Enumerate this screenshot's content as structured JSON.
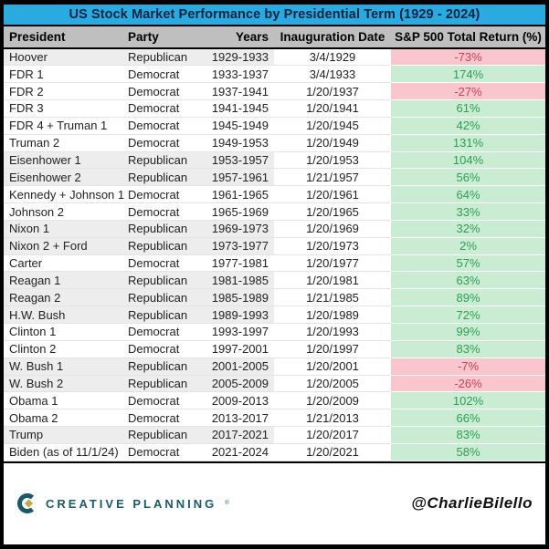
{
  "title": "US Stock Market Performance by Presidential Term (1929 - 2024)",
  "chart_data": {
    "type": "table",
    "title": "US Stock Market Performance by Presidential Term (1929 - 2024)",
    "columns": [
      "President",
      "Party",
      "Years",
      "Inauguration Date",
      "S&P 500 Total Return (%)"
    ],
    "rows": [
      [
        "Hoover",
        "Republican",
        "1929-1933",
        "3/4/1929",
        "-73%"
      ],
      [
        "FDR 1",
        "Democrat",
        "1933-1937",
        "3/4/1933",
        "174%"
      ],
      [
        "FDR 2",
        "Democrat",
        "1937-1941",
        "1/20/1937",
        "-27%"
      ],
      [
        "FDR 3",
        "Democrat",
        "1941-1945",
        "1/20/1941",
        "61%"
      ],
      [
        "FDR 4 + Truman 1",
        "Democrat",
        "1945-1949",
        "1/20/1945",
        "42%"
      ],
      [
        "Truman 2",
        "Democrat",
        "1949-1953",
        "1/20/1949",
        "131%"
      ],
      [
        "Eisenhower 1",
        "Republican",
        "1953-1957",
        "1/20/1953",
        "104%"
      ],
      [
        "Eisenhower 2",
        "Republican",
        "1957-1961",
        "1/21/1957",
        "56%"
      ],
      [
        "Kennedy + Johnson 1",
        "Democrat",
        "1961-1965",
        "1/20/1961",
        "64%"
      ],
      [
        "Johnson 2",
        "Democrat",
        "1965-1969",
        "1/20/1965",
        "33%"
      ],
      [
        "Nixon 1",
        "Republican",
        "1969-1973",
        "1/20/1969",
        "32%"
      ],
      [
        "Nixon 2 + Ford",
        "Republican",
        "1973-1977",
        "1/20/1973",
        "2%"
      ],
      [
        "Carter",
        "Democrat",
        "1977-1981",
        "1/20/1977",
        "57%"
      ],
      [
        "Reagan 1",
        "Republican",
        "1981-1985",
        "1/20/1981",
        "63%"
      ],
      [
        "Reagan 2",
        "Republican",
        "1985-1989",
        "1/21/1985",
        "89%"
      ],
      [
        "H.W. Bush",
        "Republican",
        "1989-1993",
        "1/20/1989",
        "72%"
      ],
      [
        "Clinton 1",
        "Democrat",
        "1993-1997",
        "1/20/1993",
        "99%"
      ],
      [
        "Clinton 2",
        "Democrat",
        "1997-2001",
        "1/20/1997",
        "83%"
      ],
      [
        "W. Bush 1",
        "Republican",
        "2001-2005",
        "1/20/2001",
        "-7%"
      ],
      [
        "W. Bush 2",
        "Republican",
        "2005-2009",
        "1/20/2005",
        "-26%"
      ],
      [
        "Obama 1",
        "Democrat",
        "2009-2013",
        "1/20/2009",
        "102%"
      ],
      [
        "Obama 2",
        "Democrat",
        "2013-2017",
        "1/21/2013",
        "66%"
      ],
      [
        "Trump",
        "Republican",
        "2017-2021",
        "1/20/2017",
        "83%"
      ],
      [
        "Biden (as of 11/1/24)",
        "Democrat",
        "2021-2024",
        "1/20/2021",
        "58%"
      ]
    ],
    "layout_hints": {
      "grid": "row-separators",
      "striping": "republican-rows-gray",
      "value_formatting": "green-positive-red-negative"
    }
  },
  "footer": {
    "brand": "CREATIVE PLANNING",
    "trademark": "®",
    "handle": "@CharlieBilello"
  },
  "colors": {
    "title_bg": "#29abe2",
    "title_text": "#10233f",
    "header_bg": "#bfbfbf",
    "republican_row_bg": "#ededed",
    "democrat_row_bg": "#ffffff",
    "positive_bg": "#c9ecd2",
    "positive_text": "#2e9e54",
    "negative_bg": "#f9c6cd",
    "negative_text": "#c74456",
    "brand_teal": "#1d5868",
    "brand_gold": "#c9a84c",
    "frame_border": "#000000"
  }
}
